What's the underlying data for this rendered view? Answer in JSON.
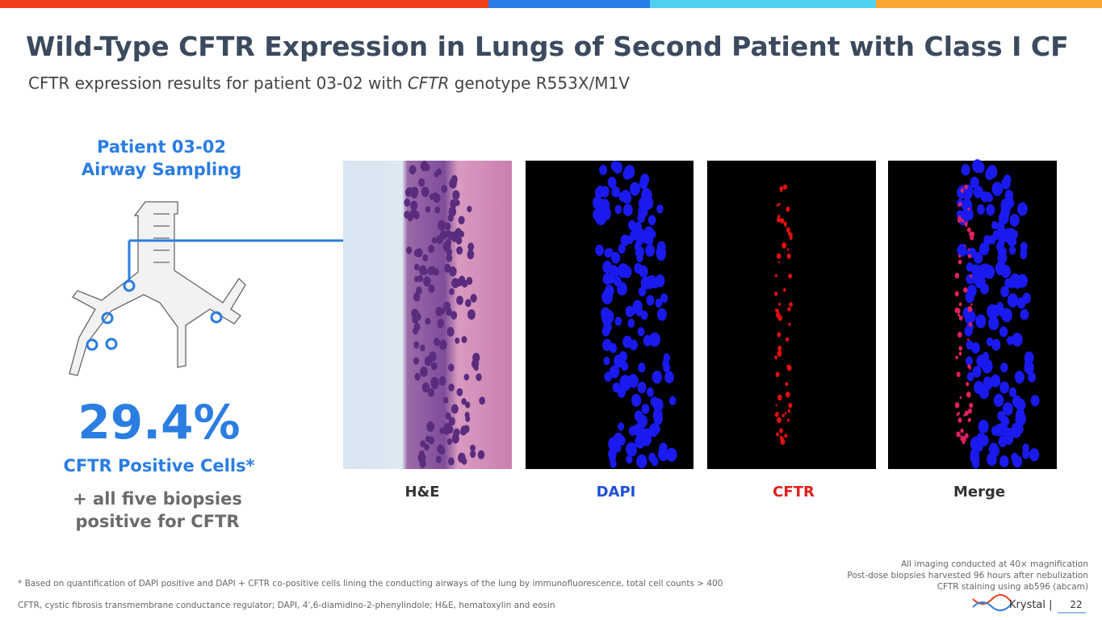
{
  "header": {
    "title": "Wild-Type CFTR Expression in Lungs of Second Patient with Class I CF",
    "subtitle": [
      "CFTR expression results for patient 03-02 with ",
      "CFTR",
      " genotype R553X/M1V"
    ]
  },
  "left_panel": {
    "heading": [
      "Patient 03-02",
      "Airway Sampling"
    ],
    "stat": "29.4%",
    "stat_label": "CFTR Positive Cells*",
    "note": [
      "+ all five biopsies",
      "positive for CFTR"
    ]
  },
  "images": [
    {
      "label": "H&E"
    },
    {
      "label": "DAPI"
    },
    {
      "label": "CFTR"
    },
    {
      "label": "Merge"
    }
  ],
  "side_notes": [
    "All imaging conducted at 40× magnification",
    "Post-dose biopsies harvested 96 hours after nebulization",
    "CFTR staining using ab596 (abcam)"
  ],
  "footnotes": [
    "* Based on quantification of DAPI positive and DAPI + CFTR co-positive cells lining the conducting airways of the lung by immunofluorescence, total cell counts > 400",
    "CFTR, cystic fibrosis transmembrane conductance regulator; DAPI, 4',6-diamidino-2-phenylindole; H&E, hematoxylin and eosin"
  ],
  "footer": {
    "logo": "Krystal |",
    "page": "22"
  }
}
